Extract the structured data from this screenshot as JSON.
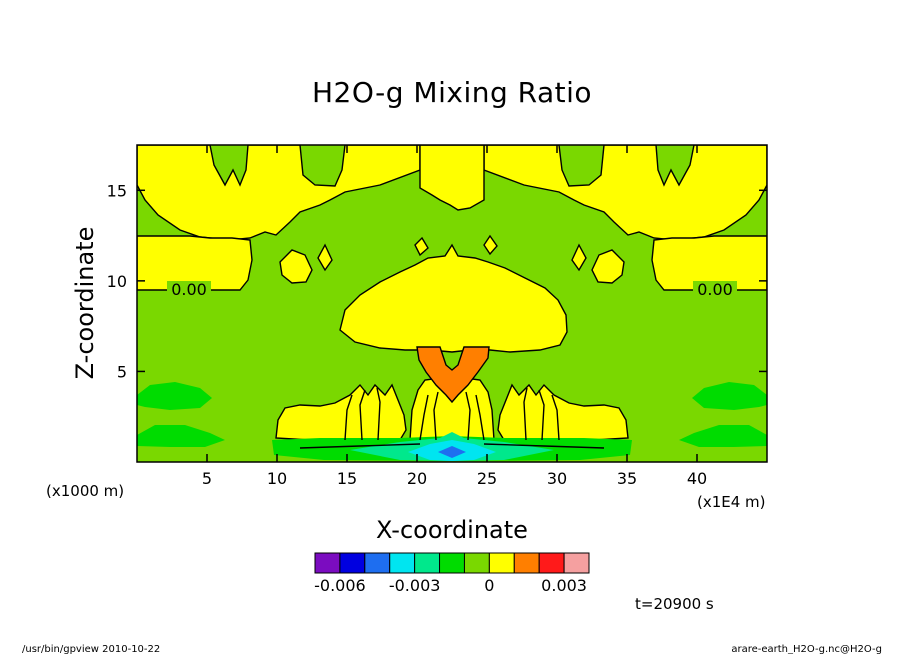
{
  "chart_data": {
    "type": "heatmap",
    "title": "H2O-g Mixing Ratio",
    "xlabel": "X-coordinate",
    "ylabel": "Z-coordinate",
    "x_unit_label": "(x1000 m)",
    "x_unit_label_right": "(x1E4 m)",
    "xlim": [
      0,
      45
    ],
    "ylim": [
      0,
      17.5
    ],
    "x_ticks": [
      5,
      10,
      15,
      20,
      25,
      30,
      35,
      40
    ],
    "x_tick_labels": [
      "5",
      "10",
      "15",
      "20",
      "25",
      "30",
      "35",
      "40"
    ],
    "y_ticks": [
      5,
      10,
      15
    ],
    "y_tick_labels": [
      "5",
      "10",
      "15"
    ],
    "contour_label": "0.00",
    "colorbar": {
      "bins": [
        -0.007,
        -0.006,
        -0.005,
        -0.004,
        -0.003,
        -0.002,
        -0.001,
        0,
        0.001,
        0.002,
        0.003,
        0.004
      ],
      "colors": [
        "#7b0cc0",
        "#0000e0",
        "#1e6ef0",
        "#00e5f0",
        "#00e88c",
        "#00dc00",
        "#7ad800",
        "#ffff00",
        "#ff7f00",
        "#ff1a1a",
        "#f5a0a0"
      ],
      "tick_labels": [
        "-0.006",
        "-0.003",
        "0",
        "0.003"
      ],
      "tick_values": [
        -0.006,
        -0.003,
        0,
        0.003
      ]
    },
    "regions": {
      "background": {
        "value_range": [
          -0.001,
          0
        ],
        "color": "#7ad800"
      },
      "positive": {
        "value_range": [
          0,
          0.001
        ],
        "color": "#ffff00"
      },
      "core": {
        "value_range": [
          0.001,
          0.002
        ],
        "color": "#ff7f00"
      },
      "low_1": {
        "value_range": [
          -0.002,
          -0.001
        ],
        "color": "#00dc00"
      },
      "low_2": {
        "value_range": [
          -0.003,
          -0.002
        ],
        "color": "#00e88c"
      },
      "low_3": {
        "value_range": [
          -0.004,
          -0.003
        ],
        "color": "#00e5f0"
      },
      "low_4": {
        "value_range": [
          -0.005,
          -0.004
        ],
        "color": "#1e6ef0"
      }
    },
    "time_label": "t=20900 s"
  },
  "footer": {
    "left": "/usr/bin/gpview  2010-10-22",
    "right": "arare-earth_H2O-g.nc@H2O-g"
  }
}
